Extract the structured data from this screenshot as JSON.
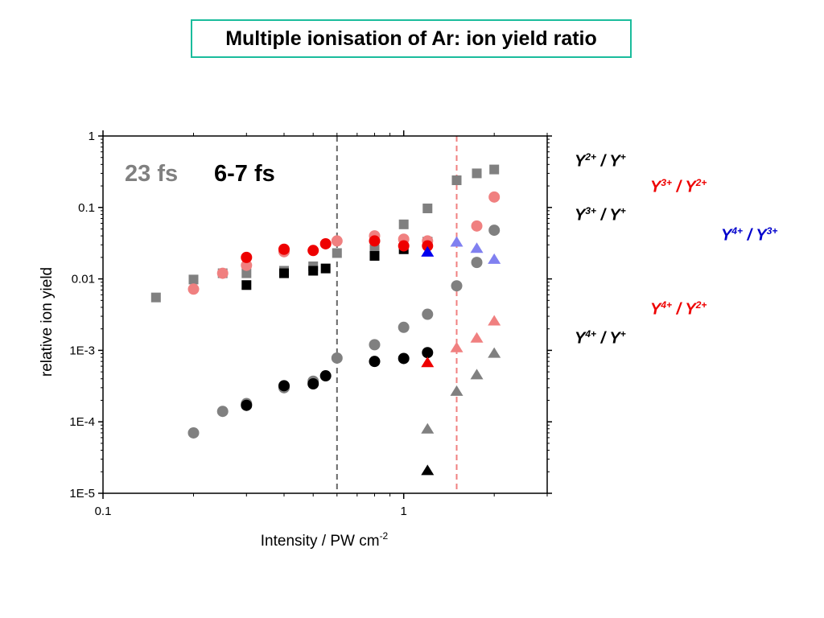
{
  "title": "Multiple ionisation of Ar: ion yield ratio",
  "chart_data": {
    "type": "scatter",
    "title": "Multiple ionisation of Ar: ion yield ratio",
    "xlabel": "Intensity / PW cm",
    "xlabel_sup": "-2",
    "ylabel": "relative ion yield",
    "x_scale": "log",
    "y_scale": "log",
    "xlim": [
      0.1,
      3.0
    ],
    "ylim": [
      1e-05,
      1
    ],
    "x_ticks": [
      {
        "value": 0.1,
        "label": "0.1"
      },
      {
        "value": 1,
        "label": "1"
      }
    ],
    "y_ticks": [
      {
        "value": 1,
        "label": "1"
      },
      {
        "value": 0.1,
        "label": "0.1"
      },
      {
        "value": 0.01,
        "label": "0.01"
      },
      {
        "value": 0.001,
        "label": "1E-3"
      },
      {
        "value": 0.0001,
        "label": "1E-4"
      },
      {
        "value": 1e-05,
        "label": "1E-5"
      }
    ],
    "vlines": [
      {
        "x": 0.6,
        "color": "#666666"
      },
      {
        "x": 1.5,
        "color": "#f08080"
      }
    ],
    "annotations": [
      {
        "text": "23 fs",
        "color": "#808080"
      },
      {
        "text": "6-7 fs",
        "color": "#000000"
      }
    ],
    "series": [
      {
        "group": "23 fs",
        "marker": "square",
        "color": "#808080",
        "x": [
          0.15,
          0.2,
          0.25,
          0.3,
          0.4,
          0.5,
          0.6,
          0.8,
          1.0,
          1.2,
          1.5,
          1.75,
          2.0
        ],
        "y": [
          0.0055,
          0.0098,
          0.012,
          0.012,
          0.013,
          0.015,
          0.023,
          0.026,
          0.058,
          0.097,
          0.24,
          0.3,
          0.34
        ]
      },
      {
        "group": "6-7 fs",
        "marker": "square",
        "color": "#000000",
        "x": [
          0.3,
          0.4,
          0.5,
          0.55,
          0.8,
          1.0,
          1.2
        ],
        "y": [
          0.0082,
          0.012,
          0.013,
          0.014,
          0.021,
          0.026,
          0.033
        ]
      },
      {
        "group": "23 fs",
        "marker": "circle",
        "color": "#f08080",
        "x": [
          0.2,
          0.25,
          0.3,
          0.4,
          0.6,
          0.8,
          1.0,
          1.2,
          1.75,
          2.0
        ],
        "y": [
          0.0072,
          0.012,
          0.0155,
          0.024,
          0.034,
          0.04,
          0.036,
          0.034,
          0.055,
          0.14
        ]
      },
      {
        "group": "6-7 fs",
        "marker": "circle",
        "color": "#ee0000",
        "x": [
          0.3,
          0.4,
          0.5,
          0.55,
          0.8,
          1.0,
          1.2
        ],
        "y": [
          0.02,
          0.026,
          0.025,
          0.031,
          0.034,
          0.029,
          0.029
        ]
      },
      {
        "group": "23 fs",
        "marker": "circle",
        "color": "#808080",
        "x": [
          0.2,
          0.25,
          0.3,
          0.4,
          0.5,
          0.6,
          0.8,
          1.0,
          1.2,
          1.5,
          1.75,
          2.0
        ],
        "y": [
          7e-05,
          0.00014,
          0.00018,
          0.0003,
          0.00037,
          0.00078,
          0.0012,
          0.0021,
          0.0032,
          0.008,
          0.017,
          0.048
        ]
      },
      {
        "group": "6-7 fs",
        "marker": "circle",
        "color": "#000000",
        "x": [
          0.3,
          0.4,
          0.5,
          0.55,
          0.8,
          1.0,
          1.2
        ],
        "y": [
          0.00017,
          0.00032,
          0.00034,
          0.00044,
          0.0007,
          0.00077,
          0.00093
        ]
      },
      {
        "group": "23 fs",
        "marker": "triangle",
        "color": "#8080f0",
        "x": [
          1.5,
          1.75,
          2.0
        ],
        "y": [
          0.033,
          0.027,
          0.019
        ]
      },
      {
        "group": "6-7 fs",
        "marker": "triangle",
        "color": "#0000ee",
        "x": [
          1.2
        ],
        "y": [
          0.024
        ]
      },
      {
        "group": "23 fs",
        "marker": "triangle",
        "color": "#f08080",
        "x": [
          1.5,
          1.75,
          2.0
        ],
        "y": [
          0.0011,
          0.0015,
          0.0026
        ]
      },
      {
        "group": "6-7 fs",
        "marker": "triangle",
        "color": "#ee0000",
        "x": [
          1.2
        ],
        "y": [
          0.00068
        ]
      },
      {
        "group": "23 fs",
        "marker": "triangle",
        "color": "#808080",
        "x": [
          1.2,
          1.5,
          1.75,
          2.0
        ],
        "y": [
          8e-05,
          0.00027,
          0.00046,
          0.00092
        ]
      },
      {
        "group": "6-7 fs",
        "marker": "triangle",
        "color": "#000000",
        "x": [
          1.2
        ],
        "y": [
          2.1e-05
        ]
      }
    ],
    "legend": [
      {
        "num": "Y",
        "num_sup": "2+",
        "sep": " / ",
        "den": "Y",
        "den_sup": "+",
        "color": "#000000"
      },
      {
        "num": "Y",
        "num_sup": "3+",
        "sep": " / ",
        "den": "Y",
        "den_sup": "2+",
        "color": "#ee0000"
      },
      {
        "num": "Y",
        "num_sup": "3+",
        "sep": " / ",
        "den": "Y",
        "den_sup": "+",
        "color": "#000000"
      },
      {
        "num": "Y",
        "num_sup": "4+",
        "sep": " / ",
        "den": "Y",
        "den_sup": "3+",
        "color": "#0000cc"
      },
      {
        "num": "Y",
        "num_sup": "4+",
        "sep": " / ",
        "den": "Y",
        "den_sup": "2+",
        "color": "#ee0000"
      },
      {
        "num": "Y",
        "num_sup": "4+",
        "sep": " / ",
        "den": "Y",
        "den_sup": "+",
        "color": "#000000"
      }
    ]
  }
}
